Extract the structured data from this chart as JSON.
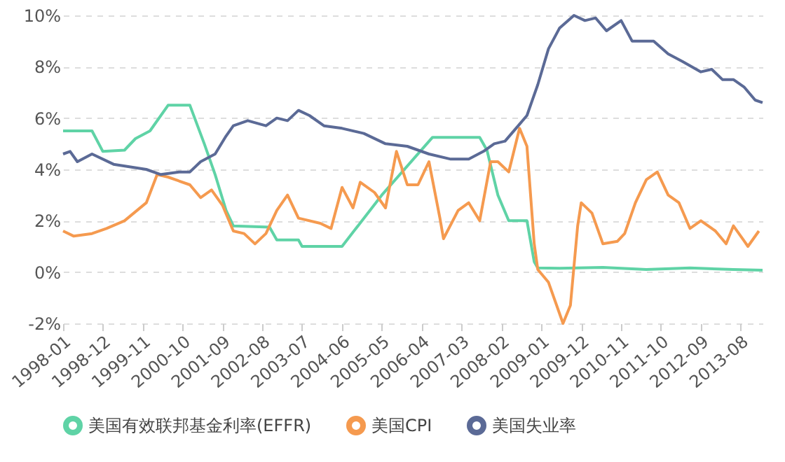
{
  "chart_data": {
    "type": "line",
    "xlim": [
      "1998-01",
      "2014-02"
    ],
    "xticks": [
      "1998-01",
      "1998-12",
      "1999-11",
      "2000-10",
      "2001-09",
      "2002-08",
      "2003-07",
      "2004-06",
      "2005-05",
      "2006-04",
      "2007-03",
      "2008-02",
      "2009-01",
      "2009-12",
      "2010-11",
      "2011-10",
      "2012-09",
      "2013-08"
    ],
    "ylim": [
      -2,
      10
    ],
    "yticks": [
      {
        "value": -2,
        "label": "-2%"
      },
      {
        "value": 0,
        "label": "0%"
      },
      {
        "value": 2,
        "label": "2%"
      },
      {
        "value": 4,
        "label": "4%"
      },
      {
        "value": 6,
        "label": "6%"
      },
      {
        "value": 8,
        "label": "8%"
      },
      {
        "value": 10,
        "label": "10%"
      }
    ],
    "grid": "y",
    "legend": "bottom",
    "line_style": "solid",
    "marker": "none",
    "series": [
      {
        "name": "美国有效联邦基金利率(EFFR)",
        "color": "#5fd3a6",
        "x": [
          "1998-01",
          "1998-09",
          "1998-12",
          "1999-06",
          "1999-09",
          "2000-01",
          "2000-06",
          "2000-12",
          "2001-04",
          "2001-07",
          "2001-10",
          "2001-12",
          "2002-10",
          "2002-12",
          "2003-06",
          "2003-07",
          "2004-06",
          "2005-05",
          "2006-07",
          "2007-08",
          "2007-10",
          "2008-01",
          "2008-04",
          "2008-09",
          "2008-11",
          "2008-12",
          "2009-06",
          "2010-06",
          "2011-06",
          "2012-06",
          "2013-06",
          "2014-02"
        ],
        "values": [
          5.5,
          5.5,
          4.7,
          4.75,
          5.2,
          5.5,
          6.5,
          6.5,
          5.0,
          3.8,
          2.4,
          1.8,
          1.75,
          1.25,
          1.25,
          1.0,
          1.0,
          3.0,
          5.25,
          5.25,
          4.75,
          3.0,
          2.0,
          2.0,
          0.4,
          0.16,
          0.15,
          0.18,
          0.1,
          0.16,
          0.1,
          0.07
        ]
      },
      {
        "name": "美国CPI",
        "color": "#f59a4f",
        "x": [
          "1998-01",
          "1998-04",
          "1998-09",
          "1999-01",
          "1999-06",
          "1999-12",
          "2000-03",
          "2000-06",
          "2000-12",
          "2001-03",
          "2001-06",
          "2001-09",
          "2001-12",
          "2002-03",
          "2002-06",
          "2002-09",
          "2002-12",
          "2003-03",
          "2003-06",
          "2003-12",
          "2004-03",
          "2004-06",
          "2004-09",
          "2004-11",
          "2005-03",
          "2005-06",
          "2005-09",
          "2005-12",
          "2006-03",
          "2006-06",
          "2006-09",
          "2006-10",
          "2007-02",
          "2007-05",
          "2007-08",
          "2007-11",
          "2008-01",
          "2008-04",
          "2008-07",
          "2008-09",
          "2008-11",
          "2008-12",
          "2009-03",
          "2009-07",
          "2009-09",
          "2009-11",
          "2009-12",
          "2010-03",
          "2010-06",
          "2010-10",
          "2010-12",
          "2011-03",
          "2011-06",
          "2011-09",
          "2011-12",
          "2012-03",
          "2012-06",
          "2012-09",
          "2012-11",
          "2013-01",
          "2013-04",
          "2013-06",
          "2013-09",
          "2013-10",
          "2014-01"
        ],
        "values": [
          1.6,
          1.4,
          1.5,
          1.7,
          2.0,
          2.7,
          3.8,
          3.7,
          3.4,
          2.9,
          3.2,
          2.6,
          1.6,
          1.5,
          1.1,
          1.5,
          2.4,
          3.0,
          2.1,
          1.9,
          1.7,
          3.3,
          2.5,
          3.5,
          3.1,
          2.5,
          4.7,
          3.4,
          3.4,
          4.3,
          2.1,
          1.3,
          2.4,
          2.7,
          2.0,
          4.3,
          4.3,
          3.9,
          5.6,
          4.9,
          1.1,
          0.1,
          -0.4,
          -2.0,
          -1.3,
          1.8,
          2.7,
          2.3,
          1.1,
          1.2,
          1.5,
          2.7,
          3.6,
          3.9,
          3.0,
          2.7,
          1.7,
          2.0,
          1.8,
          1.6,
          1.1,
          1.8,
          1.2,
          1.0,
          1.6
        ]
      },
      {
        "name": "美国失业率",
        "color": "#5b6a96",
        "x": [
          "1998-01",
          "1998-03",
          "1998-05",
          "1998-09",
          "1999-03",
          "1999-12",
          "2000-04",
          "2000-09",
          "2000-12",
          "2001-03",
          "2001-07",
          "2001-10",
          "2001-12",
          "2002-04",
          "2002-09",
          "2002-12",
          "2003-03",
          "2003-06",
          "2003-09",
          "2004-01",
          "2004-06",
          "2004-12",
          "2005-06",
          "2005-12",
          "2006-06",
          "2006-12",
          "2007-05",
          "2007-09",
          "2007-12",
          "2008-03",
          "2008-06",
          "2008-09",
          "2008-12",
          "2009-03",
          "2009-06",
          "2009-10",
          "2010-01",
          "2010-04",
          "2010-07",
          "2010-11",
          "2011-02",
          "2011-08",
          "2011-12",
          "2012-04",
          "2012-09",
          "2012-12",
          "2013-03",
          "2013-06",
          "2013-09",
          "2013-12",
          "2014-02"
        ],
        "values": [
          4.6,
          4.7,
          4.3,
          4.6,
          4.2,
          4.0,
          3.8,
          3.9,
          3.9,
          4.3,
          4.6,
          5.3,
          5.7,
          5.9,
          5.7,
          6.0,
          5.9,
          6.3,
          6.1,
          5.7,
          5.6,
          5.4,
          5.0,
          4.9,
          4.6,
          4.4,
          4.4,
          4.7,
          5.0,
          5.1,
          5.6,
          6.1,
          7.3,
          8.7,
          9.5,
          10.0,
          9.8,
          9.9,
          9.4,
          9.8,
          9.0,
          9.0,
          8.5,
          8.2,
          7.8,
          7.9,
          7.5,
          7.5,
          7.2,
          6.7,
          6.6
        ]
      }
    ]
  }
}
